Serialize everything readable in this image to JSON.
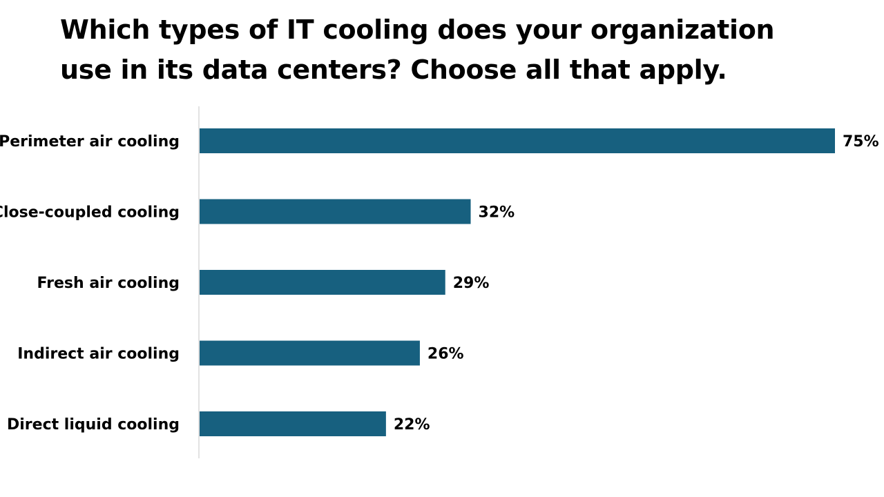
{
  "chart_data": {
    "type": "bar",
    "orientation": "horizontal",
    "title": "Which types of IT cooling does your organization use in its data centers? Choose all that apply.",
    "categories": [
      "Perimeter air cooling",
      "Close-coupled cooling",
      "Fresh air cooling",
      "Indirect air cooling",
      "Direct liquid cooling"
    ],
    "values": [
      75,
      32,
      29,
      26,
      22
    ],
    "value_labels": [
      "75%",
      "32%",
      "29%",
      "26%",
      "22%"
    ],
    "unit": "%",
    "xlim": [
      0,
      75
    ],
    "grid": false,
    "legend": "none",
    "bar_color": "#17607f",
    "axis_color": "#d9d9d9"
  }
}
